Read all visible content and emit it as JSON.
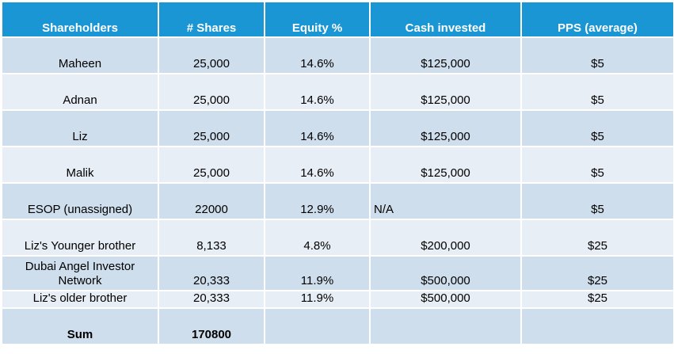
{
  "headers": [
    "Shareholders",
    "# Shares",
    "Equity %",
    "Cash invested",
    "PPS (average)"
  ],
  "rows": [
    {
      "name": "Maheen",
      "shares": "25,000",
      "equity": "14.6%",
      "cash": "$125,000",
      "pps": "$5"
    },
    {
      "name": "Adnan",
      "shares": "25,000",
      "equity": "14.6%",
      "cash": "$125,000",
      "pps": "$5"
    },
    {
      "name": "Liz",
      "shares": "25,000",
      "equity": "14.6%",
      "cash": "$125,000",
      "pps": "$5"
    },
    {
      "name": "Malik",
      "shares": "25,000",
      "equity": "14.6%",
      "cash": "$125,000",
      "pps": "$5"
    },
    {
      "name": "ESOP (unassigned)",
      "shares": "22000",
      "equity": "12.9%",
      "cash": "N/A",
      "pps": "$5"
    },
    {
      "name": "Liz's Younger brother",
      "shares": "8,133",
      "equity": "4.8%",
      "cash": "$200,000",
      "pps": "$25"
    },
    {
      "name": "Dubai Angel Investor Network",
      "shares": "20,333",
      "equity": "11.9%",
      "cash": "$500,000",
      "pps": "$25"
    },
    {
      "name": "Liz's older brother",
      "shares": "20,333",
      "equity": "11.9%",
      "cash": "$500,000",
      "pps": "$25"
    }
  ],
  "sum": {
    "label": "Sum",
    "shares": "170800",
    "equity": "",
    "cash": "",
    "pps": ""
  },
  "colors": {
    "header": "#1a96d5",
    "band_dark": "#cfdeec",
    "band_light": "#e8eef6"
  }
}
